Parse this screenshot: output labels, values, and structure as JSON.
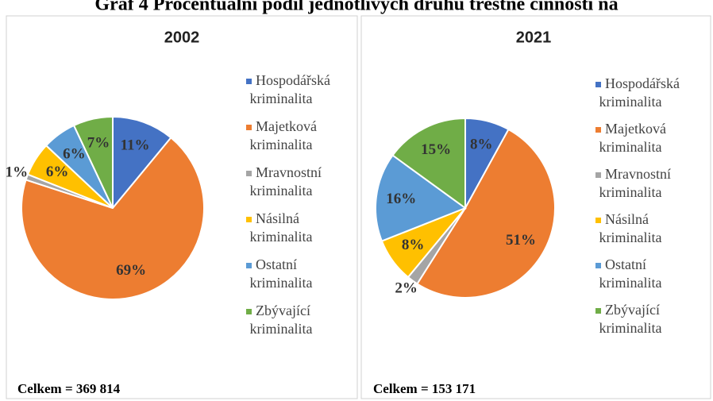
{
  "title": "Graf 4 Procentuální podíl jednotlivých druhů trestné činnosti na",
  "chart_data": [
    {
      "type": "pie",
      "title": "2002",
      "categories": [
        "Hospodářská kriminalita",
        "Majetková kriminalita",
        "Mravnostní kriminalita",
        "Násilná kriminalita",
        "Ostatní kriminalita",
        "Zbývající kriminalita"
      ],
      "values": [
        11,
        69,
        1,
        6,
        6,
        7
      ],
      "value_labels": [
        "11%",
        "69%",
        "1%",
        "6%",
        "6%",
        "7%"
      ],
      "colors": [
        "#4472c4",
        "#ed7d31",
        "#a5a5a5",
        "#ffc000",
        "#5b9bd5",
        "#70ad47"
      ],
      "annotation": "Celkem = 369 814"
    },
    {
      "type": "pie",
      "title": "2021",
      "categories": [
        "Hospodářská kriminalita",
        "Majetková kriminalita",
        "Mravnostní kriminalita",
        "Násilná kriminalita",
        "Ostatní kriminalita",
        "Zbývající kriminalita"
      ],
      "values": [
        8,
        51,
        2,
        8,
        16,
        15
      ],
      "value_labels": [
        "8%",
        "51%",
        "2%",
        "8%",
        "16%",
        "15%"
      ],
      "colors": [
        "#4472c4",
        "#ed7d31",
        "#a5a5a5",
        "#ffc000",
        "#5b9bd5",
        "#70ad47"
      ],
      "annotation": "Celkem = 153 171"
    }
  ]
}
